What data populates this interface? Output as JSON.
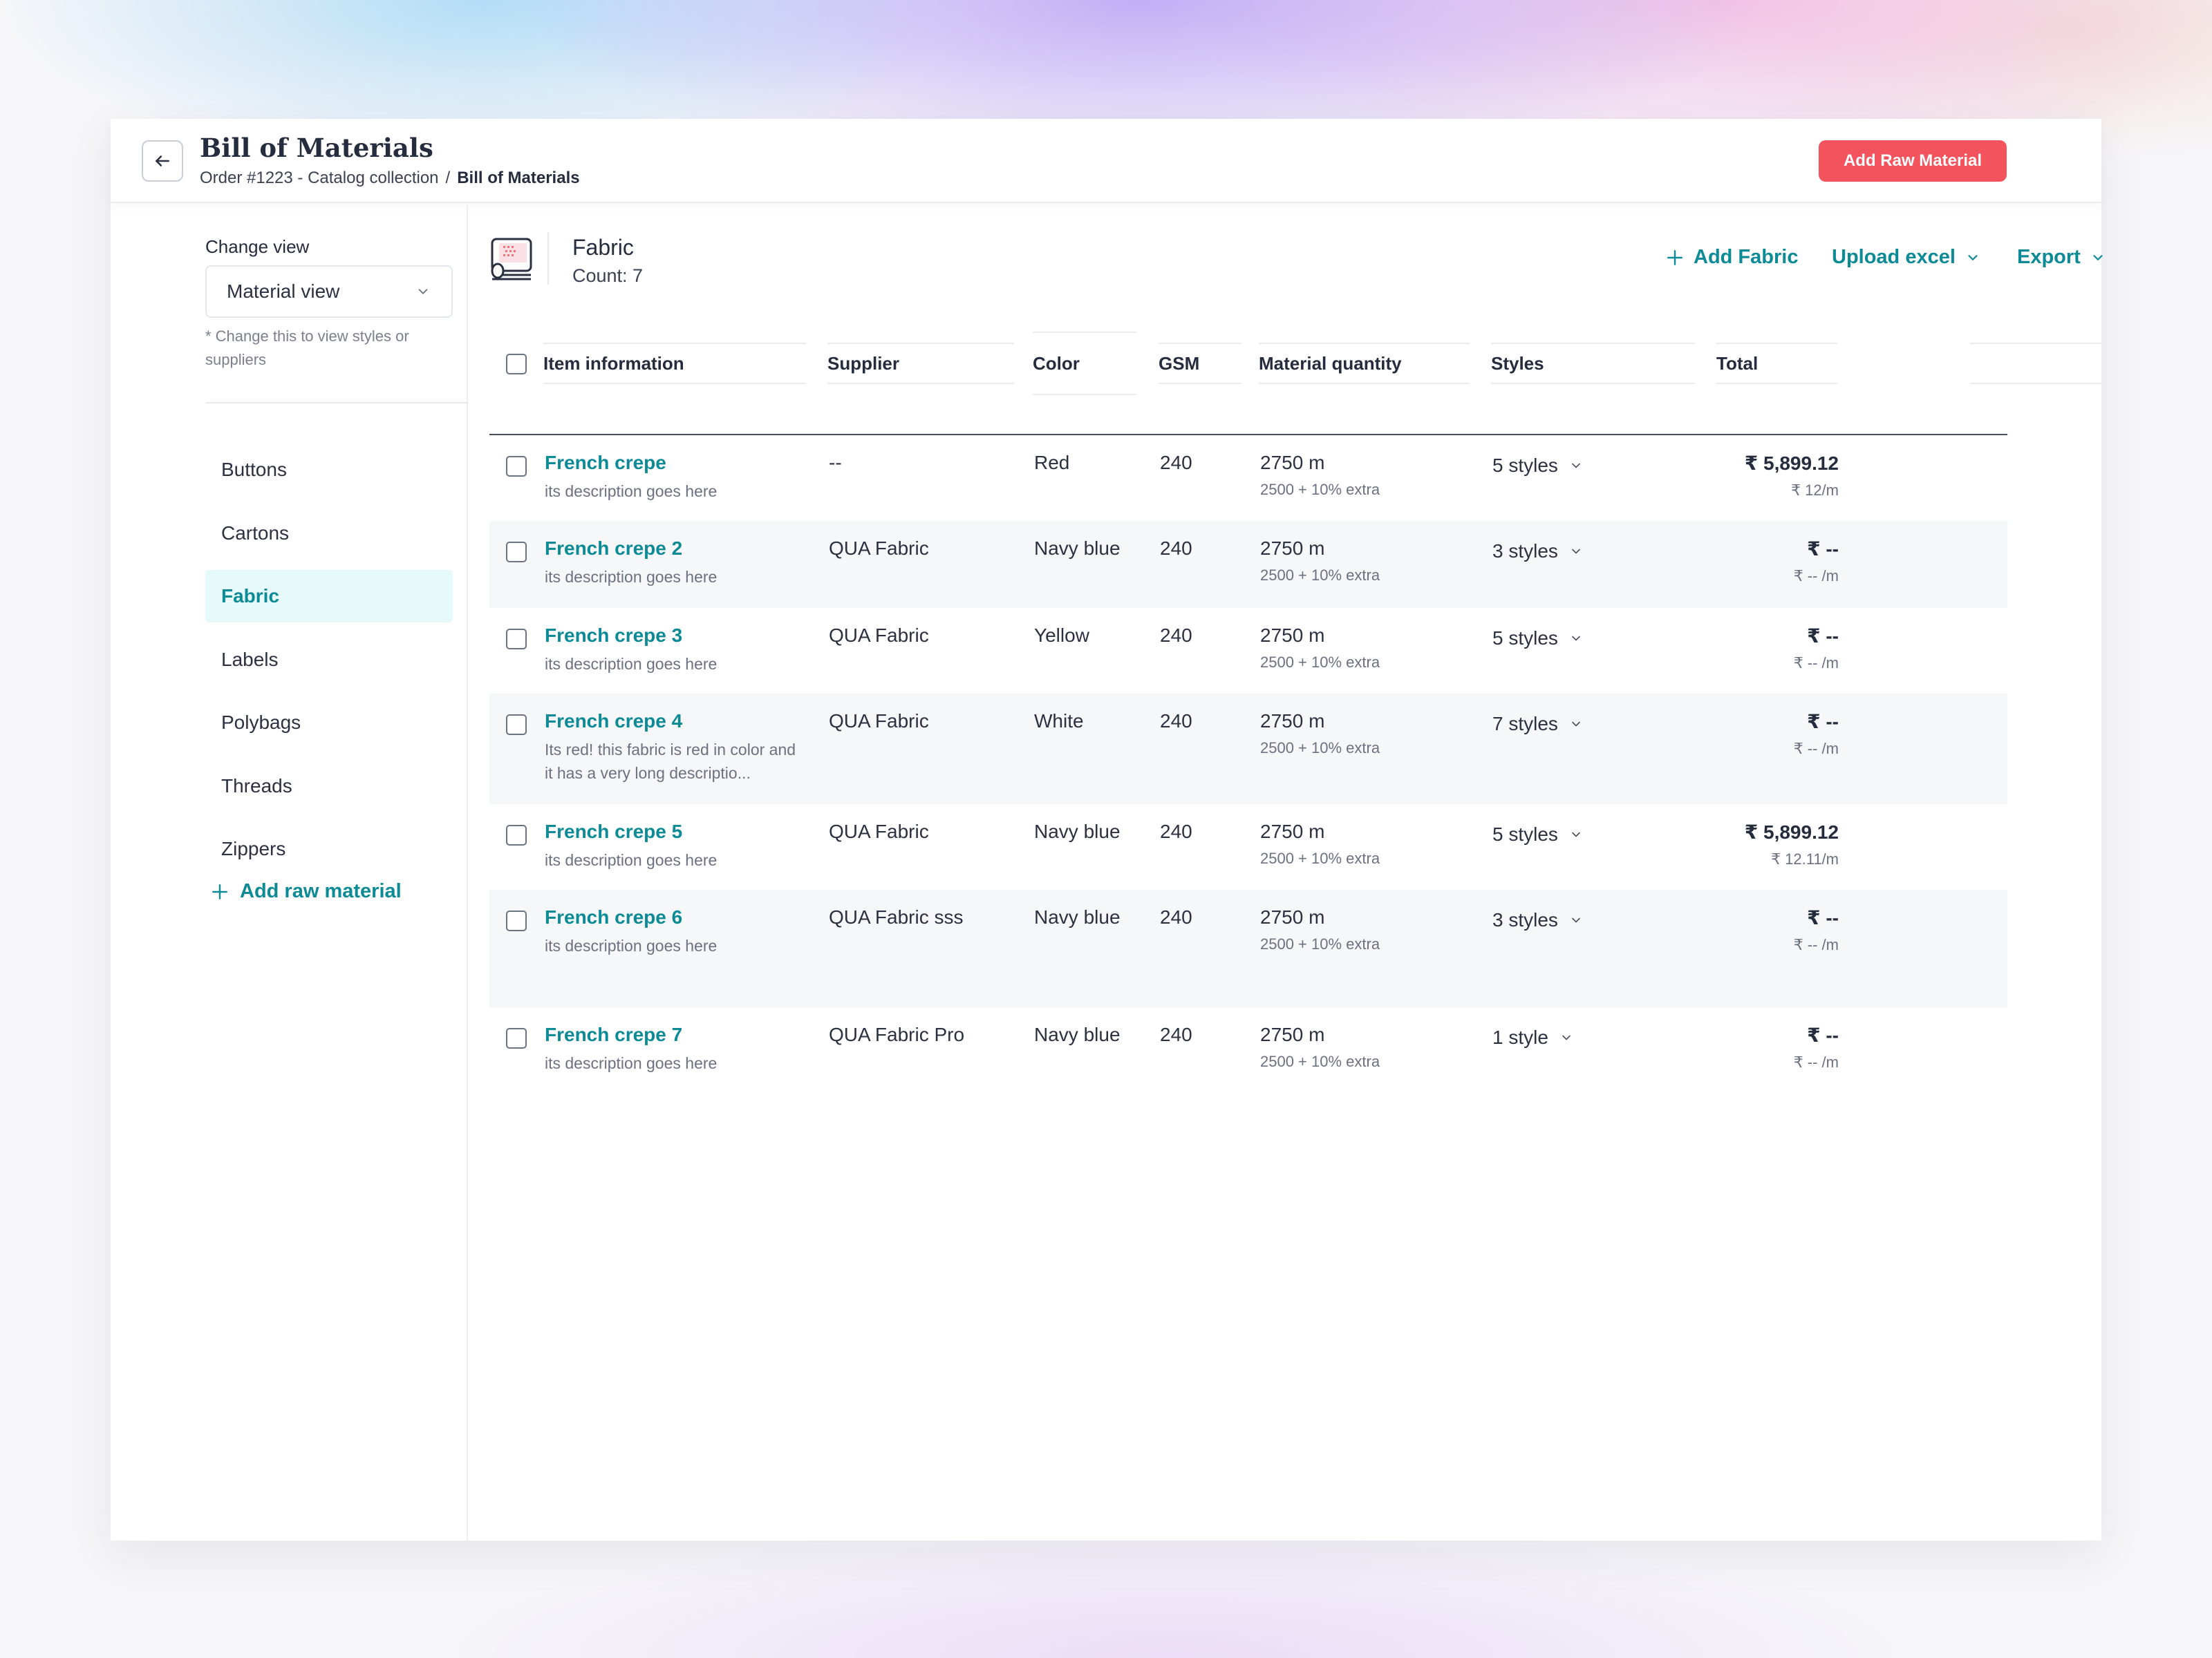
{
  "header": {
    "title": "Bill of Materials",
    "breadcrumb": {
      "parent": "Order #1223 - Catalog collection",
      "separator": "/",
      "current": "Bill of Materials"
    },
    "primary_button": "Add Raw Material"
  },
  "sidebar": {
    "change_view_label": "Change view",
    "select_value": "Material view",
    "hint": "* Change this to view styles or suppliers",
    "items": [
      {
        "label": "Buttons",
        "active": false
      },
      {
        "label": "Cartons",
        "active": false
      },
      {
        "label": "Fabric",
        "active": true
      },
      {
        "label": "Labels",
        "active": false
      },
      {
        "label": "Polybags",
        "active": false
      },
      {
        "label": "Threads",
        "active": false
      },
      {
        "label": "Zippers",
        "active": false
      }
    ],
    "add_label": "Add raw material"
  },
  "section": {
    "title": "Fabric",
    "count": "Count: 7",
    "actions": {
      "add": "Add Fabric",
      "upload": "Upload excel",
      "export": "Export"
    }
  },
  "table": {
    "columns": [
      "Item information",
      "Supplier",
      "Color",
      "GSM",
      "Material quantity",
      "Styles",
      "Total"
    ],
    "rows": [
      {
        "name": "French crepe",
        "desc": "its description goes here",
        "supplier": "--",
        "color": "Red",
        "gsm": "240",
        "qty": "2750 m",
        "qty_sub": "2500 + 10% extra",
        "styles": "5 styles",
        "total": "₹ 5,899.12",
        "total_sub": "₹ 12/m"
      },
      {
        "name": "French crepe 2",
        "desc": "its description goes here",
        "supplier": "QUA Fabric",
        "color": "Navy blue",
        "gsm": "240",
        "qty": "2750 m",
        "qty_sub": "2500 + 10% extra",
        "styles": "3 styles",
        "total": "₹ --",
        "total_sub": "₹ -- /m"
      },
      {
        "name": "French crepe 3",
        "desc": "its description goes here",
        "supplier": "QUA Fabric",
        "color": "Yellow",
        "gsm": "240",
        "qty": "2750 m",
        "qty_sub": "2500 + 10% extra",
        "styles": "5 styles",
        "total": "₹ --",
        "total_sub": "₹ -- /m"
      },
      {
        "name": "French crepe 4",
        "desc": "Its red! this fabric is red in color and it has a very long descriptio...",
        "supplier": "QUA Fabric",
        "color": "White",
        "gsm": "240",
        "qty": "2750 m",
        "qty_sub": "2500 + 10% extra",
        "styles": "7 styles",
        "total": "₹ --",
        "total_sub": "₹ -- /m"
      },
      {
        "name": "French crepe 5",
        "desc": "its description goes here",
        "supplier": "QUA Fabric",
        "color": "Navy blue",
        "gsm": "240",
        "qty": "2750 m",
        "qty_sub": "2500 + 10% extra",
        "styles": "5 styles",
        "total": "₹ 5,899.12",
        "total_sub": "₹ 12.11/m"
      },
      {
        "name": "French crepe 6",
        "desc": "its description goes here",
        "supplier": "QUA Fabric sss",
        "color": "Navy blue",
        "gsm": "240",
        "qty": "2750 m",
        "qty_sub": "2500 + 10% extra",
        "styles": "3 styles",
        "total": "₹ --",
        "total_sub": "₹ -- /m"
      },
      {
        "name": "French crepe 7",
        "desc": "its description goes here",
        "supplier": "QUA Fabric Pro",
        "color": "Navy blue",
        "gsm": "240",
        "qty": "2750 m",
        "qty_sub": "2500 + 10% extra",
        "styles": "1 style",
        "total": "₹ --",
        "total_sub": "₹ -- /m"
      }
    ]
  },
  "colors": {
    "accent": "#0c8a95",
    "primary": "#f3535c",
    "active_bg": "#e6fafc"
  },
  "icons": {
    "back": "arrow-left-icon",
    "chevron": "chevron-down-icon",
    "plus": "plus-icon",
    "fabric": "fabric-roll-icon"
  }
}
